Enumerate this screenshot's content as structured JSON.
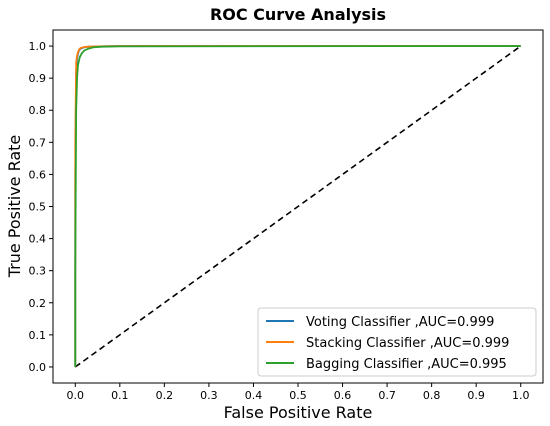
{
  "chart_data": {
    "type": "line",
    "title": "ROC Curve Analysis",
    "xlabel": "False Positive Rate",
    "ylabel": "True Positive Rate",
    "xlim": [
      -0.05,
      1.05
    ],
    "ylim": [
      -0.05,
      1.05
    ],
    "xticks": [
      "0.0",
      "0.1",
      "0.2",
      "0.3",
      "0.4",
      "0.5",
      "0.6",
      "0.7",
      "0.8",
      "0.9",
      "1.0"
    ],
    "yticks": [
      "0.0",
      "0.1",
      "0.2",
      "0.3",
      "0.4",
      "0.5",
      "0.6",
      "0.7",
      "0.8",
      "0.9",
      "1.0"
    ],
    "grid": false,
    "legend_position": "lower-right",
    "series": [
      {
        "name": "Voting Classifier ,AUC=0.999",
        "color": "#1f77b4",
        "x": [
          0.0,
          0.0,
          0.002,
          0.004,
          0.006,
          0.008,
          0.012,
          0.02,
          0.03,
          0.05,
          0.1,
          1.0
        ],
        "y": [
          0.0,
          0.6,
          0.92,
          0.96,
          0.975,
          0.985,
          0.992,
          0.996,
          0.998,
          0.999,
          1.0,
          1.0
        ]
      },
      {
        "name": "Stacking Classifier ,AUC=0.999",
        "color": "#ff7f0e",
        "x": [
          0.0,
          0.0,
          0.002,
          0.004,
          0.006,
          0.008,
          0.012,
          0.02,
          0.03,
          0.05,
          0.1,
          1.0
        ],
        "y": [
          0.0,
          0.7,
          0.95,
          0.97,
          0.98,
          0.988,
          0.994,
          0.997,
          0.998,
          0.999,
          1.0,
          1.0
        ]
      },
      {
        "name": "Bagging Classifier ,AUC=0.995",
        "color": "#2ca02c",
        "x": [
          0.0,
          0.0,
          0.002,
          0.004,
          0.006,
          0.01,
          0.015,
          0.02,
          0.03,
          0.04,
          0.06,
          0.1,
          1.0
        ],
        "y": [
          0.0,
          0.3,
          0.8,
          0.9,
          0.94,
          0.965,
          0.978,
          0.986,
          0.992,
          0.996,
          0.998,
          0.999,
          1.0
        ]
      }
    ],
    "reference_line": {
      "x": [
        0.0,
        1.0
      ],
      "y": [
        0.0,
        1.0
      ],
      "color": "#000000",
      "style": "dashed"
    }
  }
}
